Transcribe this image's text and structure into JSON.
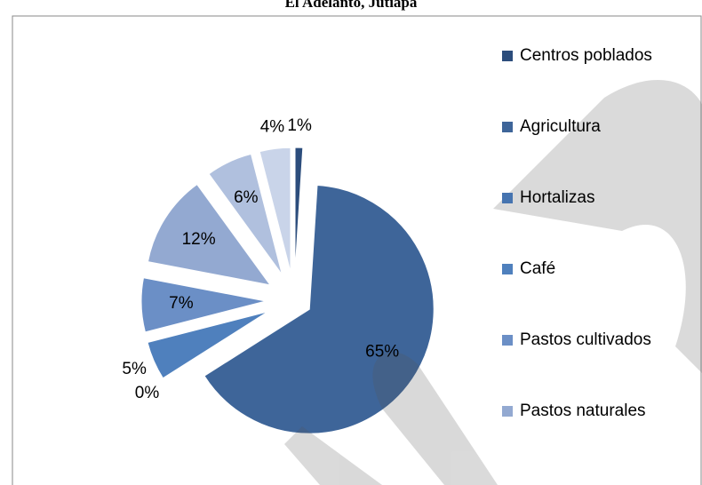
{
  "chart_data": {
    "type": "pie",
    "title": "El Adelanto, Jutiapa",
    "categories": [
      "Centros poblados",
      "Agricultura",
      "Hortalizas",
      "Café",
      "Pastos cultivados",
      "Pastos naturales",
      null,
      null
    ],
    "values": [
      1,
      65,
      0,
      5,
      7,
      12,
      6,
      4
    ],
    "value_labels": [
      "1%",
      "65%",
      "0%",
      "5%",
      "7%",
      "12%",
      "6%",
      "4%"
    ],
    "colors": [
      "#2c4d7c",
      "#3e6599",
      "#4674b0",
      "#4f80bd",
      "#6b8fc6",
      "#93a9d1",
      "#b0c0de",
      "#c9d4e9"
    ],
    "legend": "right"
  }
}
